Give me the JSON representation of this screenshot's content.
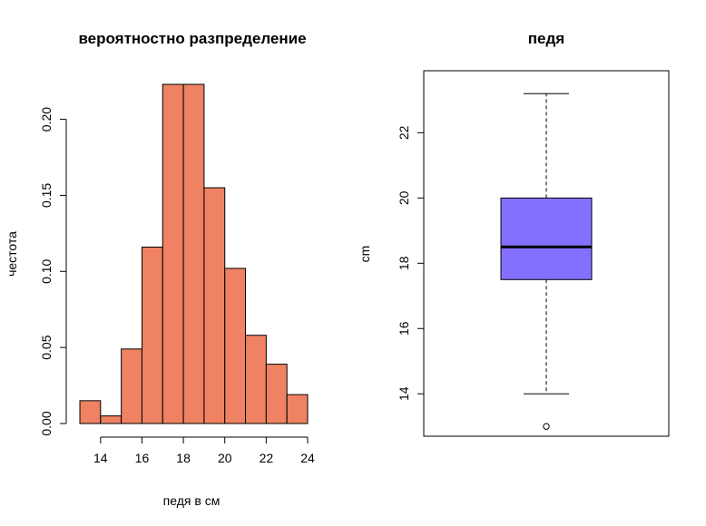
{
  "chart_data": [
    {
      "type": "bar",
      "title": "вероятностно разпределение",
      "xlabel": "педя в см",
      "ylabel": "честота",
      "bin_edges": [
        13,
        14,
        15,
        16,
        17,
        18,
        19,
        20,
        21,
        22,
        23,
        24
      ],
      "values": [
        0.015,
        0.005,
        0.049,
        0.116,
        0.223,
        0.223,
        0.155,
        0.102,
        0.058,
        0.039,
        0.019
      ],
      "xlim": [
        13,
        24
      ],
      "ylim": [
        0,
        0.223
      ],
      "xticks": [
        14,
        16,
        18,
        20,
        22,
        24
      ],
      "yticks": [
        0.0,
        0.05,
        0.1,
        0.15,
        0.2
      ],
      "xtick_labels": [
        "14",
        "16",
        "18",
        "20",
        "22",
        "24"
      ],
      "ytick_labels": [
        "0.00",
        "0.05",
        "0.10",
        "0.15",
        "0.20"
      ],
      "bar_color": "#EE8262",
      "grid": false
    },
    {
      "type": "box",
      "title": "педя",
      "ylabel": "cm",
      "min_whisker": 14,
      "q1": 17.5,
      "median": 18.5,
      "q3": 20,
      "max_whisker": 23.2,
      "outliers": [
        13
      ],
      "ylim": [
        12.7,
        23.9
      ],
      "yticks": [
        14,
        16,
        18,
        20,
        22
      ],
      "ytick_labels": [
        "14",
        "16",
        "18",
        "20",
        "22"
      ],
      "box_color": "#8470FF",
      "grid": false
    }
  ]
}
